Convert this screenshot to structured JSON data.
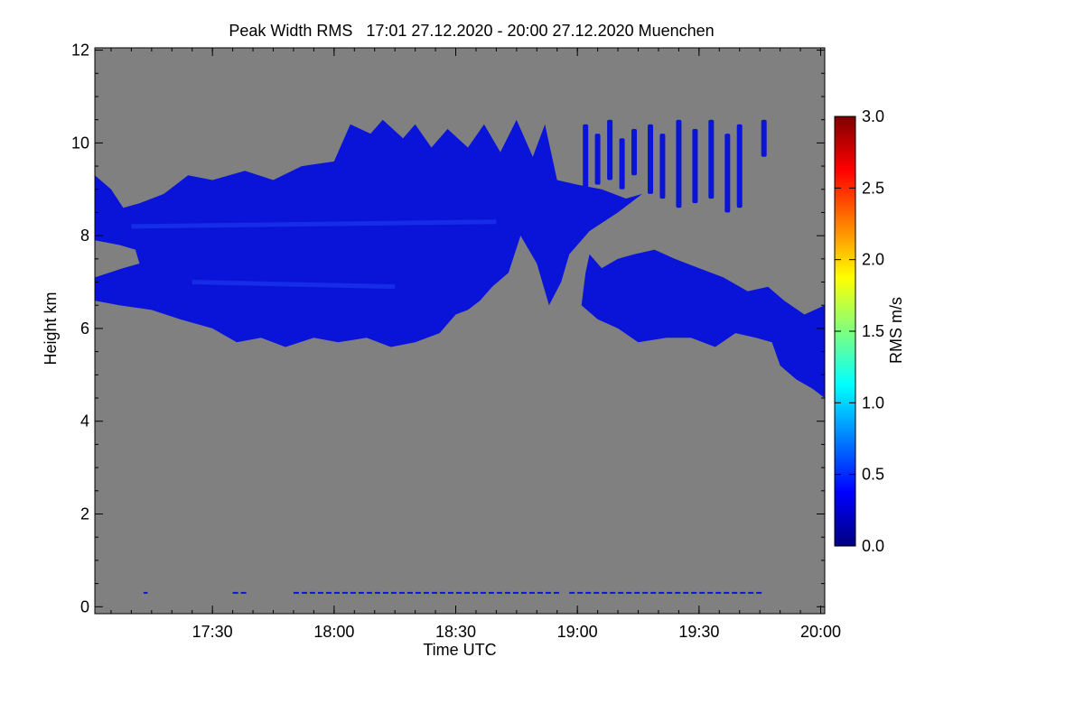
{
  "chart_data": {
    "type": "heatmap",
    "title": "Peak Width RMS   17:01 27.12.2020 - 20:00 27.12.2020 Muenchen",
    "xlabel": "Time UTC",
    "ylabel": "Height km",
    "xlim": [
      "17:01",
      "20:01"
    ],
    "ylim": [
      -0.15,
      12.05
    ],
    "x_ticks": [
      {
        "value": "17:30",
        "label": "17:30"
      },
      {
        "value": "18:00",
        "label": "18:00"
      },
      {
        "value": "18:30",
        "label": "18:30"
      },
      {
        "value": "19:00",
        "label": "19:00"
      },
      {
        "value": "19:30",
        "label": "19:30"
      },
      {
        "value": "20:00",
        "label": "20:00"
      }
    ],
    "y_ticks": [
      {
        "value": 0,
        "label": "0"
      },
      {
        "value": 2,
        "label": "2"
      },
      {
        "value": 4,
        "label": "4"
      },
      {
        "value": 6,
        "label": "6"
      },
      {
        "value": 8,
        "label": "8"
      },
      {
        "value": 10,
        "label": "10"
      },
      {
        "value": 12,
        "label": "12"
      }
    ],
    "colorbar": {
      "label": "RMS m/s",
      "range": [
        0.0,
        3.0
      ],
      "ticks": [
        {
          "value": 0.0,
          "label": "0.0"
        },
        {
          "value": 0.5,
          "label": "0.5"
        },
        {
          "value": 1.0,
          "label": "1.0"
        },
        {
          "value": 1.5,
          "label": "1.5"
        },
        {
          "value": 2.0,
          "label": "2.0"
        },
        {
          "value": 2.5,
          "label": "2.5"
        },
        {
          "value": 3.0,
          "label": "3.0"
        }
      ],
      "colormap": [
        "#00007f",
        "#0000ff",
        "#007fff",
        "#00ffff",
        "#7fff7f",
        "#ffff00",
        "#ff7f00",
        "#ff0000",
        "#7f0000"
      ]
    },
    "colors": {
      "background": "#808080",
      "echo_main": "#0a14d8",
      "echo_light": "#1f3cf0"
    },
    "regions": [
      {
        "name": "upper cloud layer",
        "value_rms": 0.35,
        "outline": [
          [
            "17:01",
            7.9
          ],
          [
            "17:01",
            9.3
          ],
          [
            "17:05",
            9.0
          ],
          [
            "17:08",
            8.6
          ],
          [
            "17:12",
            8.7
          ],
          [
            "17:18",
            8.9
          ],
          [
            "17:24",
            9.3
          ],
          [
            "17:30",
            9.2
          ],
          [
            "17:38",
            9.4
          ],
          [
            "17:45",
            9.2
          ],
          [
            "17:52",
            9.5
          ],
          [
            "18:00",
            9.6
          ],
          [
            "18:04",
            10.4
          ],
          [
            "18:09",
            10.2
          ],
          [
            "18:12",
            10.5
          ],
          [
            "18:17",
            10.1
          ],
          [
            "18:20",
            10.4
          ],
          [
            "18:24",
            9.9
          ],
          [
            "18:28",
            10.3
          ],
          [
            "18:33",
            9.9
          ],
          [
            "18:37",
            10.4
          ],
          [
            "18:41",
            9.8
          ],
          [
            "18:45",
            10.5
          ],
          [
            "18:49",
            9.7
          ],
          [
            "18:52",
            10.4
          ],
          [
            "18:55",
            9.2
          ],
          [
            "19:00",
            9.1
          ],
          [
            "19:06",
            9.0
          ],
          [
            "19:12",
            8.8
          ],
          [
            "19:16",
            8.9
          ],
          [
            "19:10",
            8.5
          ],
          [
            "19:03",
            8.1
          ],
          [
            "18:58",
            7.6
          ],
          [
            "18:56",
            7.0
          ],
          [
            "18:53",
            6.5
          ],
          [
            "18:50",
            7.4
          ],
          [
            "18:46",
            8.0
          ],
          [
            "18:43",
            7.2
          ],
          [
            "18:39",
            6.9
          ],
          [
            "18:36",
            6.6
          ],
          [
            "18:33",
            6.4
          ],
          [
            "18:30",
            6.3
          ],
          [
            "18:26",
            5.9
          ],
          [
            "18:20",
            5.7
          ],
          [
            "18:14",
            5.6
          ],
          [
            "18:08",
            5.8
          ],
          [
            "18:01",
            5.7
          ],
          [
            "17:55",
            5.8
          ],
          [
            "17:48",
            5.6
          ],
          [
            "17:42",
            5.8
          ],
          [
            "17:36",
            5.7
          ],
          [
            "17:30",
            6.0
          ],
          [
            "17:22",
            6.2
          ],
          [
            "17:15",
            6.4
          ],
          [
            "17:07",
            6.5
          ],
          [
            "17:01",
            6.6
          ],
          [
            "17:01",
            7.1
          ],
          [
            "17:08",
            7.3
          ],
          [
            "17:12",
            7.4
          ],
          [
            "17:11",
            7.7
          ],
          [
            "17:07",
            7.8
          ]
        ]
      },
      {
        "name": "fall streak columns",
        "value_rms": 0.3,
        "columns": [
          [
            "19:02",
            9.0,
            10.4
          ],
          [
            "19:05",
            9.1,
            10.2
          ],
          [
            "19:08",
            9.2,
            10.5
          ],
          [
            "19:11",
            9.0,
            10.1
          ],
          [
            "19:14",
            9.3,
            10.3
          ],
          [
            "19:18",
            8.9,
            10.4
          ],
          [
            "19:21",
            8.8,
            10.2
          ],
          [
            "19:25",
            8.6,
            10.5
          ],
          [
            "19:29",
            8.7,
            10.3
          ],
          [
            "19:33",
            8.8,
            10.5
          ],
          [
            "19:37",
            8.5,
            10.2
          ],
          [
            "19:40",
            8.6,
            10.4
          ],
          [
            "19:46",
            9.7,
            10.5
          ]
        ]
      },
      {
        "name": "lower cloud layer",
        "value_rms": 0.35,
        "outline": [
          [
            "19:01",
            6.5
          ],
          [
            "19:02",
            7.2
          ],
          [
            "19:03",
            7.6
          ],
          [
            "19:06",
            7.3
          ],
          [
            "19:10",
            7.5
          ],
          [
            "19:14",
            7.6
          ],
          [
            "19:19",
            7.7
          ],
          [
            "19:24",
            7.5
          ],
          [
            "19:30",
            7.3
          ],
          [
            "19:36",
            7.1
          ],
          [
            "19:42",
            6.8
          ],
          [
            "19:47",
            6.9
          ],
          [
            "19:51",
            6.6
          ],
          [
            "19:56",
            6.3
          ],
          [
            "20:01",
            6.5
          ],
          [
            "20:01",
            4.5
          ],
          [
            "19:58",
            4.7
          ],
          [
            "19:54",
            4.9
          ],
          [
            "19:50",
            5.2
          ],
          [
            "19:48",
            5.7
          ],
          [
            "19:44",
            5.8
          ],
          [
            "19:39",
            5.9
          ],
          [
            "19:34",
            5.6
          ],
          [
            "19:28",
            5.8
          ],
          [
            "19:22",
            5.8
          ],
          [
            "19:15",
            5.7
          ],
          [
            "19:10",
            6.0
          ],
          [
            "19:05",
            6.2
          ]
        ]
      }
    ]
  }
}
